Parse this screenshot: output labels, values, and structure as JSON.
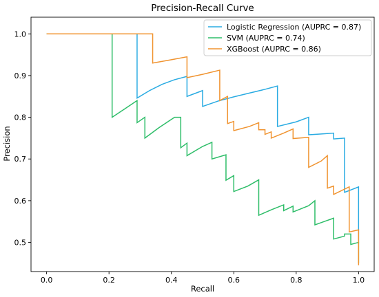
{
  "chart_data": {
    "type": "line",
    "title": "Precision-Recall Curve",
    "xlabel": "Recall",
    "ylabel": "Precision",
    "xlim": [
      -0.05,
      1.05
    ],
    "ylim": [
      0.43,
      1.04
    ],
    "xticks": [
      "0.0",
      "0.2",
      "0.4",
      "0.6",
      "0.8",
      "1.0"
    ],
    "yticks": [
      "0.5",
      "0.6",
      "0.7",
      "0.8",
      "0.9",
      "1.0"
    ],
    "grid": false,
    "legend_position": "top-right",
    "series": [
      {
        "name": "Logistic Regression (AUPRC = 0.87)",
        "color": "#29abe2",
        "x": [
          0.0,
          0.29,
          0.29,
          0.33,
          0.37,
          0.41,
          0.45,
          0.45,
          0.5,
          0.5,
          0.55,
          0.6,
          0.65,
          0.7,
          0.74,
          0.74,
          0.8,
          0.84,
          0.84,
          0.88,
          0.92,
          0.92,
          0.955,
          0.955,
          1.0,
          1.0
        ],
        "y": [
          1.0,
          1.0,
          0.846,
          0.864,
          0.879,
          0.89,
          0.898,
          0.85,
          0.864,
          0.826,
          0.839,
          0.849,
          0.858,
          0.867,
          0.875,
          0.778,
          0.789,
          0.8,
          0.758,
          0.76,
          0.762,
          0.748,
          0.75,
          0.62,
          0.633,
          0.5
        ]
      },
      {
        "name": "SVM (AUPRC = 0.74)",
        "color": "#2dbd68",
        "x": [
          0.0,
          0.21,
          0.21,
          0.25,
          0.29,
          0.29,
          0.315,
          0.315,
          0.36,
          0.41,
          0.43,
          0.43,
          0.45,
          0.45,
          0.5,
          0.53,
          0.53,
          0.575,
          0.575,
          0.6,
          0.6,
          0.645,
          0.68,
          0.68,
          0.72,
          0.76,
          0.76,
          0.79,
          0.79,
          0.84,
          0.86,
          0.86,
          0.89,
          0.92,
          0.92,
          0.955,
          0.955,
          0.975,
          0.975,
          1.0,
          1.0
        ],
        "y": [
          1.0,
          1.0,
          0.8,
          0.82,
          0.84,
          0.787,
          0.8,
          0.75,
          0.775,
          0.8,
          0.8,
          0.727,
          0.738,
          0.708,
          0.73,
          0.74,
          0.7,
          0.71,
          0.649,
          0.66,
          0.622,
          0.635,
          0.65,
          0.565,
          0.578,
          0.59,
          0.576,
          0.587,
          0.573,
          0.588,
          0.6,
          0.542,
          0.55,
          0.558,
          0.508,
          0.515,
          0.52,
          0.52,
          0.495,
          0.5,
          0.45
        ]
      },
      {
        "name": "XGBoost (AUPRC = 0.86)",
        "color": "#f0932f",
        "x": [
          0.0,
          0.34,
          0.34,
          0.4,
          0.45,
          0.45,
          0.5,
          0.555,
          0.555,
          0.58,
          0.58,
          0.6,
          0.6,
          0.65,
          0.68,
          0.68,
          0.7,
          0.7,
          0.72,
          0.72,
          0.76,
          0.79,
          0.79,
          0.84,
          0.84,
          0.88,
          0.9,
          0.9,
          0.92,
          0.92,
          0.97,
          0.97,
          1.0,
          1.0
        ],
        "y": [
          1.0,
          1.0,
          0.93,
          0.938,
          0.945,
          0.895,
          0.903,
          0.913,
          0.84,
          0.85,
          0.785,
          0.79,
          0.768,
          0.778,
          0.787,
          0.77,
          0.77,
          0.759,
          0.765,
          0.75,
          0.762,
          0.772,
          0.749,
          0.752,
          0.68,
          0.695,
          0.708,
          0.63,
          0.635,
          0.615,
          0.633,
          0.525,
          0.53,
          0.445
        ]
      }
    ]
  }
}
